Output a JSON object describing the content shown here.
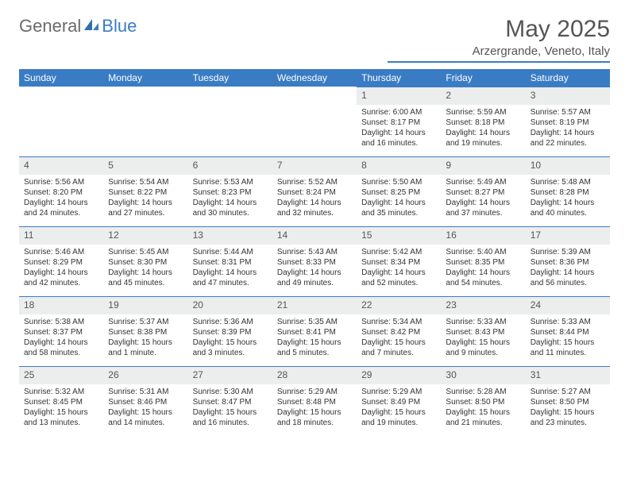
{
  "brand": {
    "part1": "General",
    "part2": "Blue"
  },
  "title": "May 2025",
  "location": "Arzergrande, Veneto, Italy",
  "colors": {
    "header_bg": "#3a7cc4",
    "header_text": "#ffffff",
    "daynum_bg": "#eceded",
    "cell_border": "#3a7cc4",
    "body_text": "#333333",
    "logo_gray": "#6a6a6a",
    "logo_blue": "#3a7cc4",
    "page_bg": "#ffffff"
  },
  "weekdays": [
    "Sunday",
    "Monday",
    "Tuesday",
    "Wednesday",
    "Thursday",
    "Friday",
    "Saturday"
  ],
  "weeks": [
    [
      null,
      null,
      null,
      null,
      {
        "n": "1",
        "sr": "Sunrise: 6:00 AM",
        "ss": "Sunset: 8:17 PM",
        "dl1": "Daylight: 14 hours",
        "dl2": "and 16 minutes."
      },
      {
        "n": "2",
        "sr": "Sunrise: 5:59 AM",
        "ss": "Sunset: 8:18 PM",
        "dl1": "Daylight: 14 hours",
        "dl2": "and 19 minutes."
      },
      {
        "n": "3",
        "sr": "Sunrise: 5:57 AM",
        "ss": "Sunset: 8:19 PM",
        "dl1": "Daylight: 14 hours",
        "dl2": "and 22 minutes."
      }
    ],
    [
      {
        "n": "4",
        "sr": "Sunrise: 5:56 AM",
        "ss": "Sunset: 8:20 PM",
        "dl1": "Daylight: 14 hours",
        "dl2": "and 24 minutes."
      },
      {
        "n": "5",
        "sr": "Sunrise: 5:54 AM",
        "ss": "Sunset: 8:22 PM",
        "dl1": "Daylight: 14 hours",
        "dl2": "and 27 minutes."
      },
      {
        "n": "6",
        "sr": "Sunrise: 5:53 AM",
        "ss": "Sunset: 8:23 PM",
        "dl1": "Daylight: 14 hours",
        "dl2": "and 30 minutes."
      },
      {
        "n": "7",
        "sr": "Sunrise: 5:52 AM",
        "ss": "Sunset: 8:24 PM",
        "dl1": "Daylight: 14 hours",
        "dl2": "and 32 minutes."
      },
      {
        "n": "8",
        "sr": "Sunrise: 5:50 AM",
        "ss": "Sunset: 8:25 PM",
        "dl1": "Daylight: 14 hours",
        "dl2": "and 35 minutes."
      },
      {
        "n": "9",
        "sr": "Sunrise: 5:49 AM",
        "ss": "Sunset: 8:27 PM",
        "dl1": "Daylight: 14 hours",
        "dl2": "and 37 minutes."
      },
      {
        "n": "10",
        "sr": "Sunrise: 5:48 AM",
        "ss": "Sunset: 8:28 PM",
        "dl1": "Daylight: 14 hours",
        "dl2": "and 40 minutes."
      }
    ],
    [
      {
        "n": "11",
        "sr": "Sunrise: 5:46 AM",
        "ss": "Sunset: 8:29 PM",
        "dl1": "Daylight: 14 hours",
        "dl2": "and 42 minutes."
      },
      {
        "n": "12",
        "sr": "Sunrise: 5:45 AM",
        "ss": "Sunset: 8:30 PM",
        "dl1": "Daylight: 14 hours",
        "dl2": "and 45 minutes."
      },
      {
        "n": "13",
        "sr": "Sunrise: 5:44 AM",
        "ss": "Sunset: 8:31 PM",
        "dl1": "Daylight: 14 hours",
        "dl2": "and 47 minutes."
      },
      {
        "n": "14",
        "sr": "Sunrise: 5:43 AM",
        "ss": "Sunset: 8:33 PM",
        "dl1": "Daylight: 14 hours",
        "dl2": "and 49 minutes."
      },
      {
        "n": "15",
        "sr": "Sunrise: 5:42 AM",
        "ss": "Sunset: 8:34 PM",
        "dl1": "Daylight: 14 hours",
        "dl2": "and 52 minutes."
      },
      {
        "n": "16",
        "sr": "Sunrise: 5:40 AM",
        "ss": "Sunset: 8:35 PM",
        "dl1": "Daylight: 14 hours",
        "dl2": "and 54 minutes."
      },
      {
        "n": "17",
        "sr": "Sunrise: 5:39 AM",
        "ss": "Sunset: 8:36 PM",
        "dl1": "Daylight: 14 hours",
        "dl2": "and 56 minutes."
      }
    ],
    [
      {
        "n": "18",
        "sr": "Sunrise: 5:38 AM",
        "ss": "Sunset: 8:37 PM",
        "dl1": "Daylight: 14 hours",
        "dl2": "and 58 minutes."
      },
      {
        "n": "19",
        "sr": "Sunrise: 5:37 AM",
        "ss": "Sunset: 8:38 PM",
        "dl1": "Daylight: 15 hours",
        "dl2": "and 1 minute."
      },
      {
        "n": "20",
        "sr": "Sunrise: 5:36 AM",
        "ss": "Sunset: 8:39 PM",
        "dl1": "Daylight: 15 hours",
        "dl2": "and 3 minutes."
      },
      {
        "n": "21",
        "sr": "Sunrise: 5:35 AM",
        "ss": "Sunset: 8:41 PM",
        "dl1": "Daylight: 15 hours",
        "dl2": "and 5 minutes."
      },
      {
        "n": "22",
        "sr": "Sunrise: 5:34 AM",
        "ss": "Sunset: 8:42 PM",
        "dl1": "Daylight: 15 hours",
        "dl2": "and 7 minutes."
      },
      {
        "n": "23",
        "sr": "Sunrise: 5:33 AM",
        "ss": "Sunset: 8:43 PM",
        "dl1": "Daylight: 15 hours",
        "dl2": "and 9 minutes."
      },
      {
        "n": "24",
        "sr": "Sunrise: 5:33 AM",
        "ss": "Sunset: 8:44 PM",
        "dl1": "Daylight: 15 hours",
        "dl2": "and 11 minutes."
      }
    ],
    [
      {
        "n": "25",
        "sr": "Sunrise: 5:32 AM",
        "ss": "Sunset: 8:45 PM",
        "dl1": "Daylight: 15 hours",
        "dl2": "and 13 minutes."
      },
      {
        "n": "26",
        "sr": "Sunrise: 5:31 AM",
        "ss": "Sunset: 8:46 PM",
        "dl1": "Daylight: 15 hours",
        "dl2": "and 14 minutes."
      },
      {
        "n": "27",
        "sr": "Sunrise: 5:30 AM",
        "ss": "Sunset: 8:47 PM",
        "dl1": "Daylight: 15 hours",
        "dl2": "and 16 minutes."
      },
      {
        "n": "28",
        "sr": "Sunrise: 5:29 AM",
        "ss": "Sunset: 8:48 PM",
        "dl1": "Daylight: 15 hours",
        "dl2": "and 18 minutes."
      },
      {
        "n": "29",
        "sr": "Sunrise: 5:29 AM",
        "ss": "Sunset: 8:49 PM",
        "dl1": "Daylight: 15 hours",
        "dl2": "and 19 minutes."
      },
      {
        "n": "30",
        "sr": "Sunrise: 5:28 AM",
        "ss": "Sunset: 8:50 PM",
        "dl1": "Daylight: 15 hours",
        "dl2": "and 21 minutes."
      },
      {
        "n": "31",
        "sr": "Sunrise: 5:27 AM",
        "ss": "Sunset: 8:50 PM",
        "dl1": "Daylight: 15 hours",
        "dl2": "and 23 minutes."
      }
    ]
  ]
}
